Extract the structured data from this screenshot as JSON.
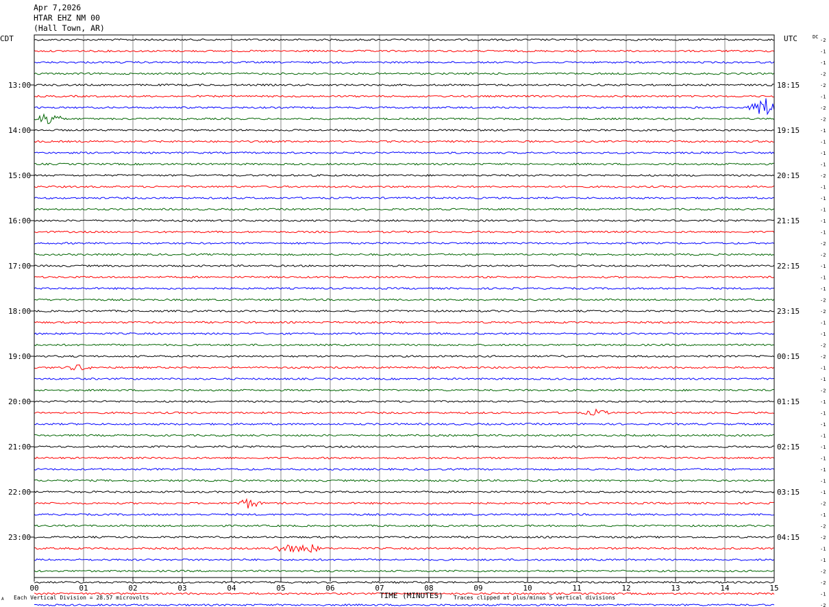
{
  "header": {
    "date": "Apr 7,2026",
    "station": "HTAR EHZ NM 00",
    "location": "(Hall Town, AR)"
  },
  "left_tz": "CDT",
  "right_tz": "UTC",
  "dc_label": "DC",
  "footer": {
    "x_axis_title": "TIME (MINUTES)",
    "scale_note": "Each Vertical Division =   28.57 microvolts",
    "clip_note": "Traces clipped at plus/minus 5 vertical divisions",
    "corner_mark": "A"
  },
  "chart_data": {
    "type": "line",
    "title": "",
    "xlabel": "TIME (MINUTES)",
    "xlim": [
      0,
      15
    ],
    "x_ticks": [
      "00",
      "01",
      "02",
      "03",
      "04",
      "05",
      "06",
      "07",
      "08",
      "09",
      "10",
      "11",
      "12",
      "13",
      "14",
      "15"
    ],
    "trace_colors": [
      "#000000",
      "#ff0000",
      "#0000ff",
      "#006400"
    ],
    "left_hour_labels": [
      "13:00",
      "14:00",
      "15:00",
      "16:00",
      "17:00",
      "18:00",
      "19:00",
      "20:00",
      "21:00",
      "22:00",
      "23:00"
    ],
    "right_hour_labels": [
      "18:15",
      "19:15",
      "20:15",
      "21:15",
      "22:15",
      "23:15",
      "00:15",
      "01:15",
      "02:15",
      "03:15",
      "04:15"
    ],
    "dc_offsets": [
      "-2",
      "-1",
      "-1",
      "-2",
      "-2",
      "-1",
      "-2",
      "-2",
      "-1",
      "-1",
      "-1",
      "-1",
      "-2",
      "-1",
      "-1",
      "-1",
      "-1",
      "-1",
      "-2",
      "-2",
      "-1",
      "-1",
      "-1",
      "-2",
      "-2",
      "-1",
      "-1",
      "-2",
      "-2",
      "-1",
      "-1",
      "-2",
      "-1",
      "-1",
      "-1",
      "-1",
      "-1",
      "-1",
      "-1",
      "-1",
      "-1",
      "-2",
      "-1",
      "-2",
      "-2",
      "-1",
      "-1",
      "-2",
      "-2",
      "-1",
      "-2",
      "-2"
    ],
    "events": [
      {
        "trace": 7,
        "minute": 0.3,
        "amplitude": "large"
      },
      {
        "trace": 6,
        "minute": 14.8,
        "amplitude": "clipped"
      },
      {
        "trace": 29,
        "minute": 0.9,
        "amplitude": "small"
      },
      {
        "trace": 33,
        "minute": 11.4,
        "amplitude": "small"
      },
      {
        "trace": 41,
        "minute": 4.35,
        "amplitude": "moderate"
      },
      {
        "trace": 45,
        "minute": 5.1,
        "amplitude": "moderate"
      },
      {
        "trace": 45,
        "minute": 5.55,
        "amplitude": "moderate"
      }
    ]
  }
}
